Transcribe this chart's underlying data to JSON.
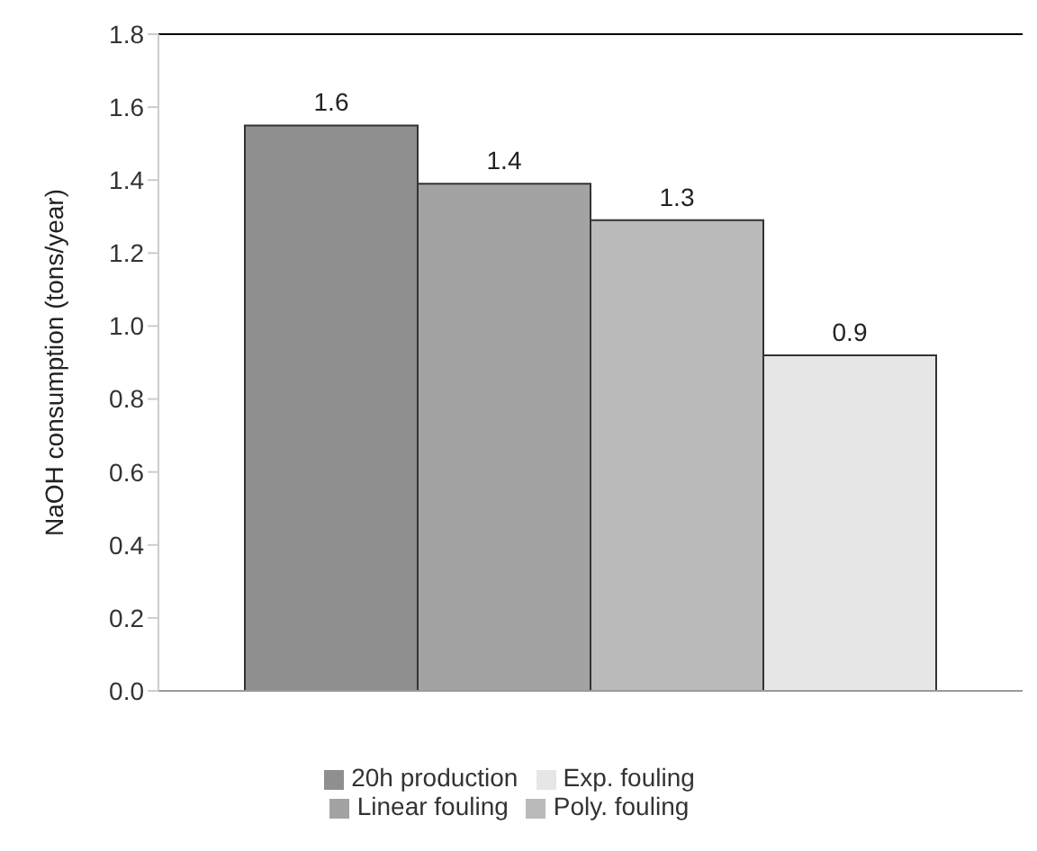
{
  "chart_data": {
    "type": "bar",
    "ylabel": "NaOH consumption (tons/year)",
    "categories": [
      null
    ],
    "series": [
      {
        "name": "20h production",
        "color": "#8f8f8f",
        "values": [
          1.55
        ],
        "value_labels": [
          "1.6"
        ]
      },
      {
        "name": "Linear fouling",
        "color": "#a3a3a3",
        "values": [
          1.39
        ],
        "value_labels": [
          "1.4"
        ]
      },
      {
        "name": "Poly. fouling",
        "color": "#bababa",
        "values": [
          1.29
        ],
        "value_labels": [
          "1.3"
        ]
      },
      {
        "name": "Exp. fouling",
        "color": "#e6e6e6",
        "values": [
          0.92
        ],
        "value_labels": [
          "0.9"
        ]
      }
    ],
    "ylim": [
      0,
      1.8
    ],
    "yticks": [
      {
        "value": 0,
        "label": "0.0"
      },
      0.2,
      0.4,
      0.6,
      0.8,
      {
        "value": 1,
        "label": "1.0"
      },
      1.2,
      1.4,
      1.6,
      1.8
    ],
    "grid": false,
    "legend": "bottom"
  }
}
